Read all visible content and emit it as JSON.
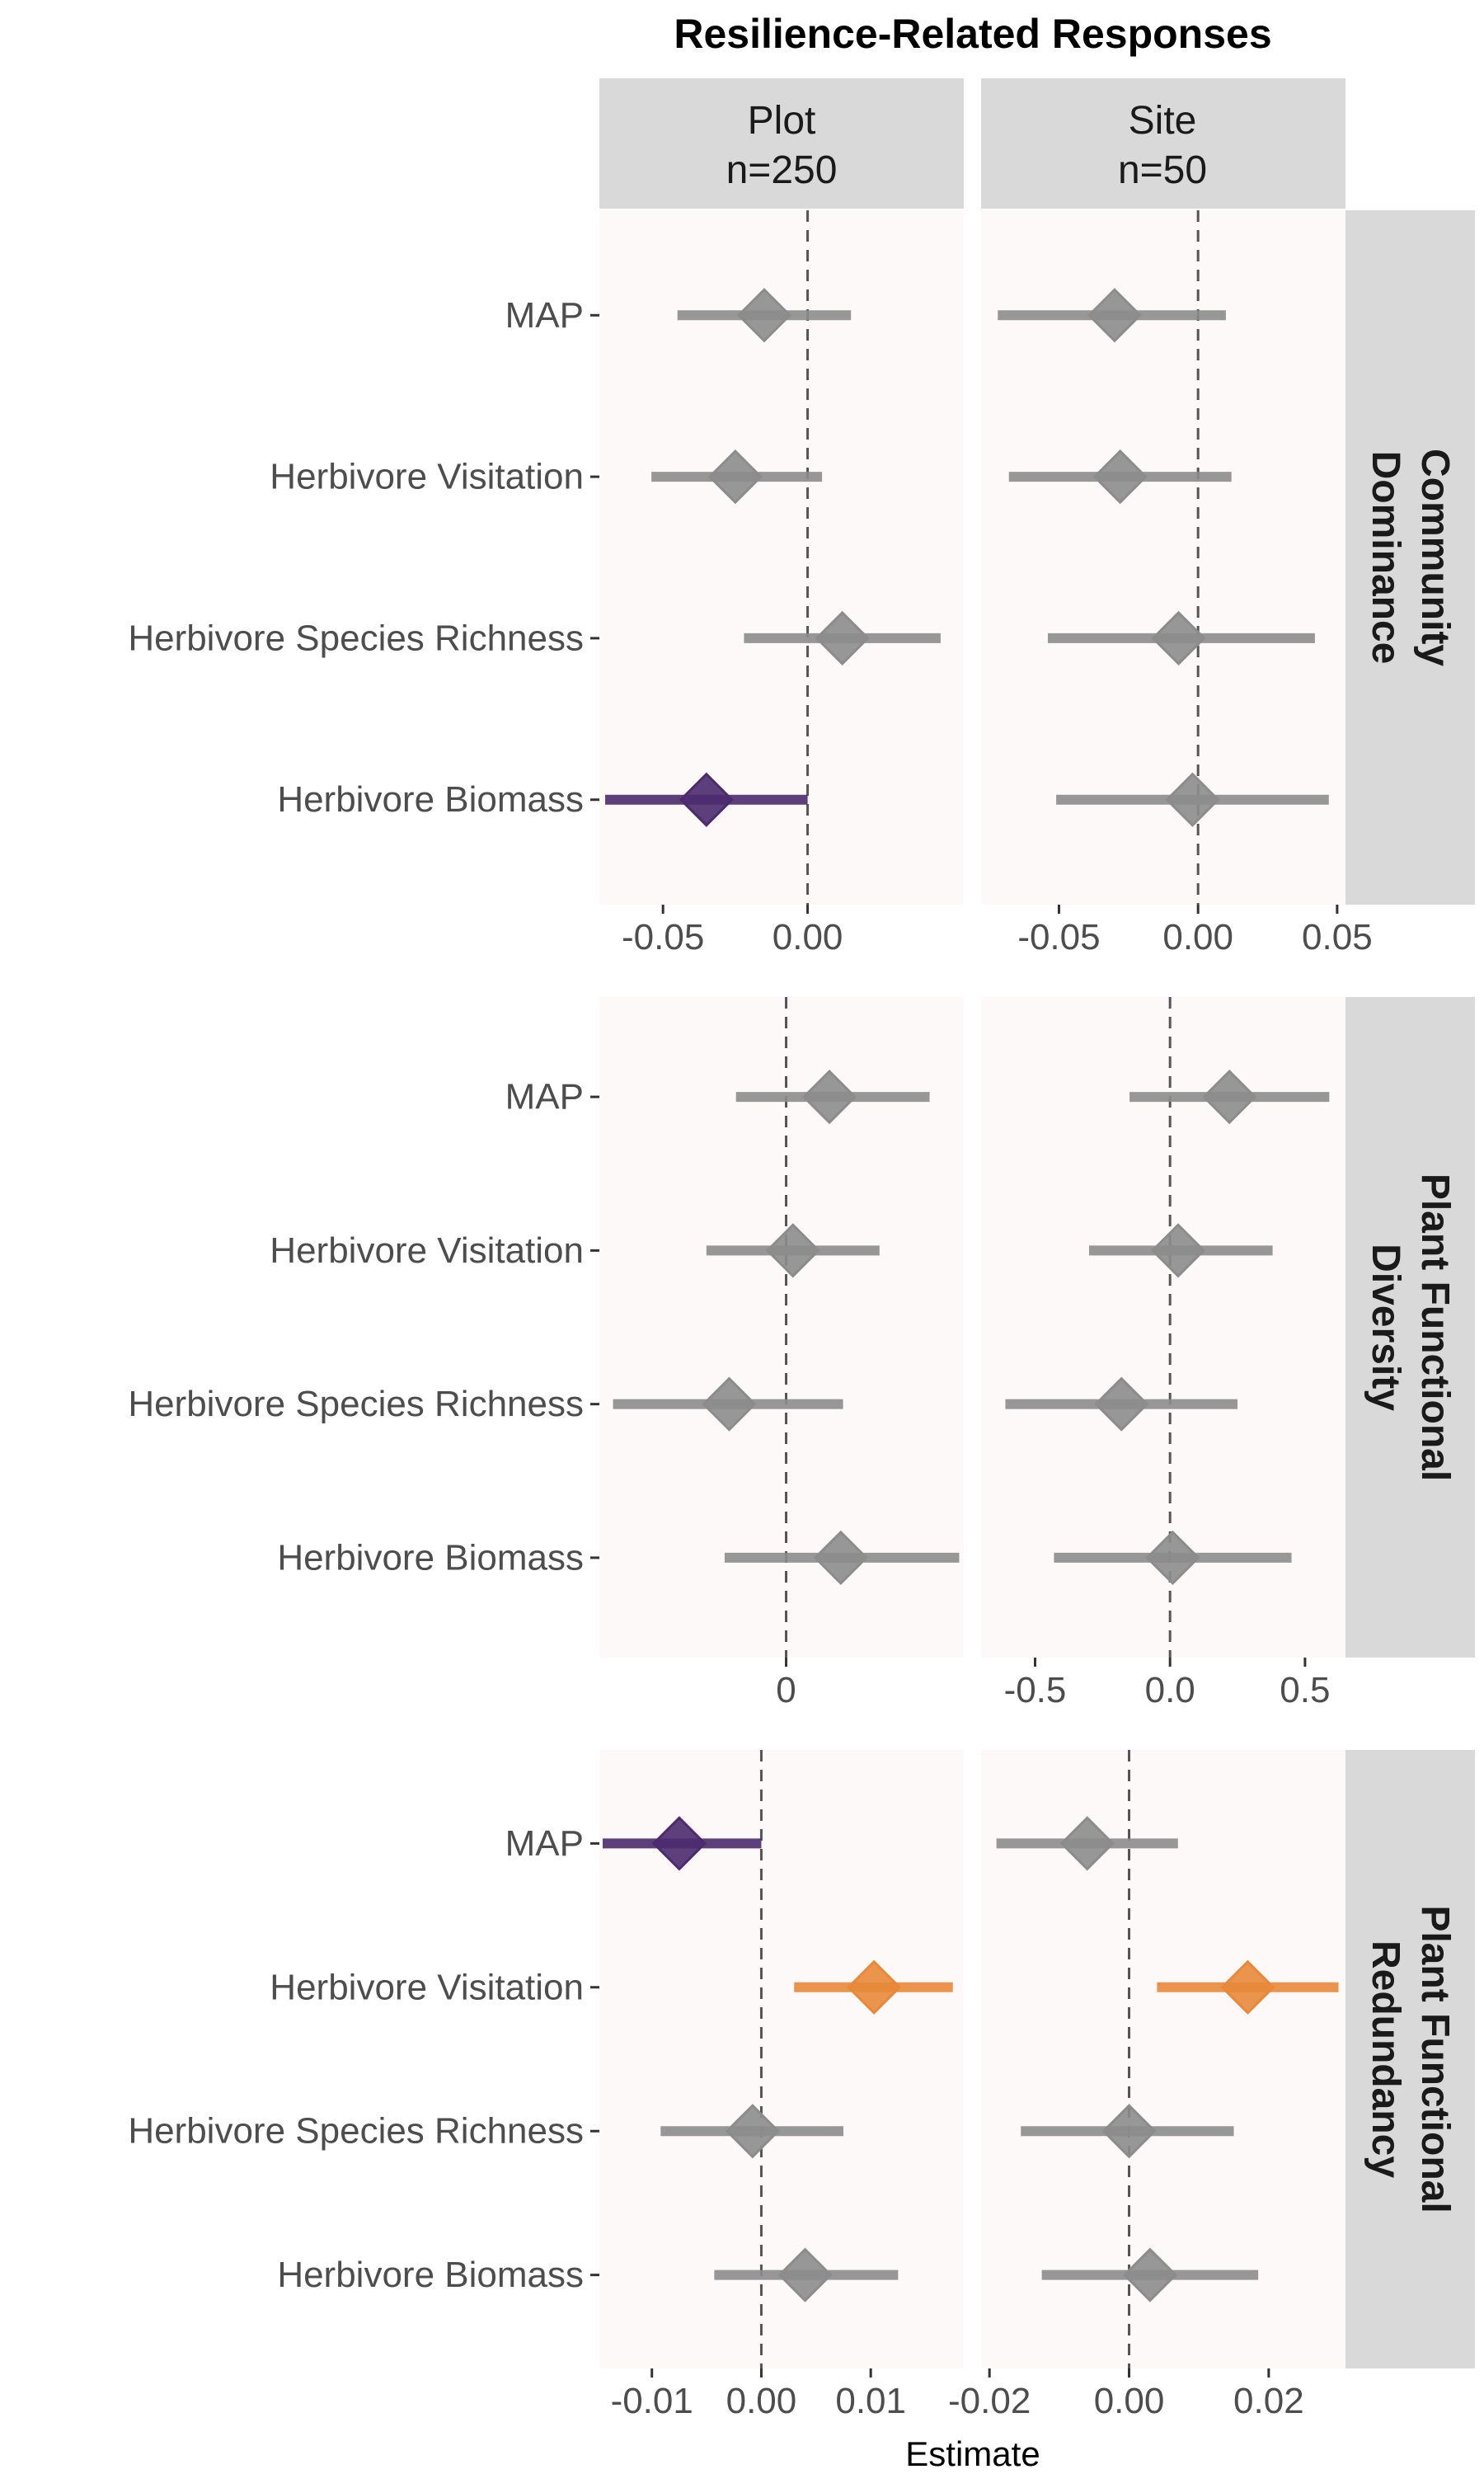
{
  "chart_data": {
    "type": "forest",
    "title": "Resilience-Related Responses",
    "xlabel": "Estimate",
    "columns": [
      {
        "line1": "Plot",
        "line2": "n=250"
      },
      {
        "line1": "Site",
        "line2": "n=50"
      }
    ],
    "predictors": [
      "MAP",
      "Herbivore Visitation",
      "Herbivore Species Richness",
      "Herbivore Biomass"
    ],
    "colors": {
      "ns": "#8c8c8c",
      "negative": "#4b2a6e",
      "positive": "#e8883a",
      "panel_bg": "#fdf9f8",
      "strip_bg": "#d9d9d9"
    },
    "rows": [
      {
        "lines": [
          "Community",
          "Dominance"
        ],
        "panels": [
          {
            "xlim": [
              -0.072,
              0.054
            ],
            "ticks": [
              -0.05,
              0.0
            ],
            "tick_labels": [
              "-0.05",
              "0.00"
            ],
            "points": [
              {
                "est": -0.015,
                "lo": -0.045,
                "hi": 0.015,
                "sig": "ns"
              },
              {
                "est": -0.025,
                "lo": -0.054,
                "hi": 0.005,
                "sig": "ns"
              },
              {
                "est": 0.012,
                "lo": -0.022,
                "hi": 0.046,
                "sig": "ns"
              },
              {
                "est": -0.035,
                "lo": -0.07,
                "hi": 0.0,
                "sig": "negative"
              }
            ]
          },
          {
            "xlim": [
              -0.078,
              0.053
            ],
            "ticks": [
              -0.05,
              0.0,
              0.05
            ],
            "tick_labels": [
              "-0.05",
              "0.00",
              "0.05"
            ],
            "points": [
              {
                "est": -0.03,
                "lo": -0.072,
                "hi": 0.01,
                "sig": "ns"
              },
              {
                "est": -0.028,
                "lo": -0.068,
                "hi": 0.012,
                "sig": "ns"
              },
              {
                "est": -0.007,
                "lo": -0.054,
                "hi": 0.042,
                "sig": "ns"
              },
              {
                "est": -0.002,
                "lo": -0.051,
                "hi": 0.047,
                "sig": "ns"
              }
            ]
          }
        ]
      },
      {
        "lines": [
          "Plant Functional",
          "Diversity"
        ],
        "panels": [
          {
            "xlim": [
              -0.82,
              0.78
            ],
            "ticks": [
              0
            ],
            "tick_labels": [
              "0"
            ],
            "points": [
              {
                "est": 0.19,
                "lo": -0.22,
                "hi": 0.63,
                "sig": "ns"
              },
              {
                "est": 0.03,
                "lo": -0.35,
                "hi": 0.41,
                "sig": "ns"
              },
              {
                "est": -0.25,
                "lo": -0.76,
                "hi": 0.25,
                "sig": "ns"
              },
              {
                "est": 0.24,
                "lo": -0.27,
                "hi": 0.76,
                "sig": "ns"
              }
            ]
          },
          {
            "xlim": [
              -0.7,
              0.65
            ],
            "ticks": [
              -0.5,
              0.0,
              0.5
            ],
            "tick_labels": [
              "-0.5",
              "0.0",
              "0.5"
            ],
            "points": [
              {
                "est": 0.22,
                "lo": -0.15,
                "hi": 0.59,
                "sig": "ns"
              },
              {
                "est": 0.03,
                "lo": -0.3,
                "hi": 0.38,
                "sig": "ns"
              },
              {
                "est": -0.18,
                "lo": -0.61,
                "hi": 0.25,
                "sig": "ns"
              },
              {
                "est": 0.01,
                "lo": -0.43,
                "hi": 0.45,
                "sig": "ns"
              }
            ]
          }
        ]
      },
      {
        "lines": [
          "Plant Functional",
          "Redundancy"
        ],
        "panels": [
          {
            "xlim": [
              -0.0148,
              0.0185
            ],
            "ticks": [
              -0.01,
              0.0,
              0.01
            ],
            "tick_labels": [
              "-0.01",
              "0.00",
              "0.01"
            ],
            "points": [
              {
                "est": -0.0075,
                "lo": -0.0145,
                "hi": 0.0,
                "sig": "negative"
              },
              {
                "est": 0.0103,
                "lo": 0.003,
                "hi": 0.0175,
                "sig": "positive"
              },
              {
                "est": -0.0008,
                "lo": -0.0092,
                "hi": 0.0075,
                "sig": "ns"
              },
              {
                "est": 0.004,
                "lo": -0.0043,
                "hi": 0.0125,
                "sig": "ns"
              }
            ]
          },
          {
            "xlim": [
              -0.0212,
              0.031
            ],
            "ticks": [
              -0.02,
              0.0,
              0.02
            ],
            "tick_labels": [
              "-0.02",
              "0.00",
              "0.02"
            ],
            "points": [
              {
                "est": -0.006,
                "lo": -0.019,
                "hi": 0.007,
                "sig": "ns"
              },
              {
                "est": 0.017,
                "lo": 0.004,
                "hi": 0.03,
                "sig": "positive"
              },
              {
                "est": 0.0,
                "lo": -0.0155,
                "hi": 0.015,
                "sig": "ns"
              },
              {
                "est": 0.003,
                "lo": -0.0125,
                "hi": 0.0185,
                "sig": "ns"
              }
            ]
          }
        ]
      }
    ]
  }
}
